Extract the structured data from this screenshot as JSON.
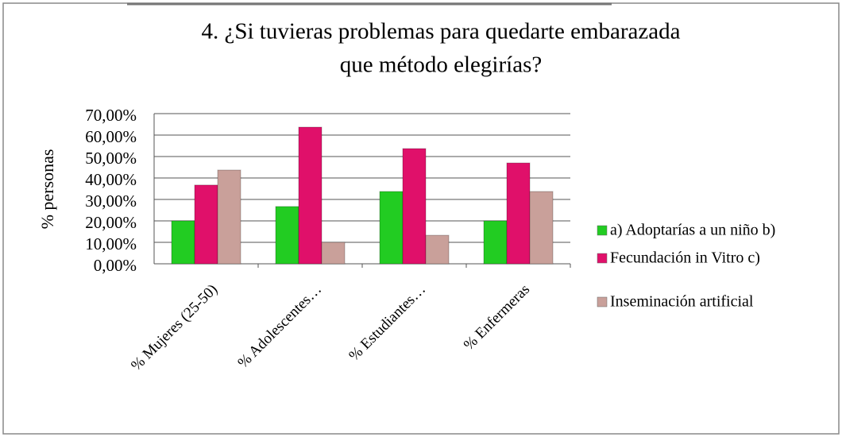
{
  "chart_data": {
    "type": "bar",
    "title": [
      "4. ¿Si tuvieras problemas para quedarte embarazada",
      "que método elegirías?"
    ],
    "y_label": "% personas",
    "categories": [
      "% Mujeres (25-50)",
      "% Adolescentes…",
      "% Estudiantes…",
      "% Enfermeras"
    ],
    "series": [
      {
        "name": "a) Adoptarías a un niño b)",
        "color": "#22cc22",
        "values": [
          20,
          26.7,
          33.7,
          20
        ]
      },
      {
        "name": "Fecundación in Vitro c)",
        "color": "#e0106a",
        "values": [
          36.7,
          63.7,
          53.7,
          47
        ]
      },
      {
        "name": "Inseminación artificial",
        "color": "#c9a09a",
        "values": [
          43.7,
          10,
          13.3,
          33.7
        ]
      }
    ],
    "ylim": [
      0,
      70
    ],
    "yticks": [
      {
        "value": 0,
        "label": "0,00%"
      },
      {
        "value": 10,
        "label": "10,00%"
      },
      {
        "value": 20,
        "label": "20,00%"
      },
      {
        "value": 30,
        "label": "30,00%"
      },
      {
        "value": 40,
        "label": "40,00%"
      },
      {
        "value": 50,
        "label": "50,00%"
      },
      {
        "value": 60,
        "label": "60,00%"
      },
      {
        "value": 70,
        "label": "70,00%"
      }
    ],
    "grid": true,
    "legend": "right"
  }
}
